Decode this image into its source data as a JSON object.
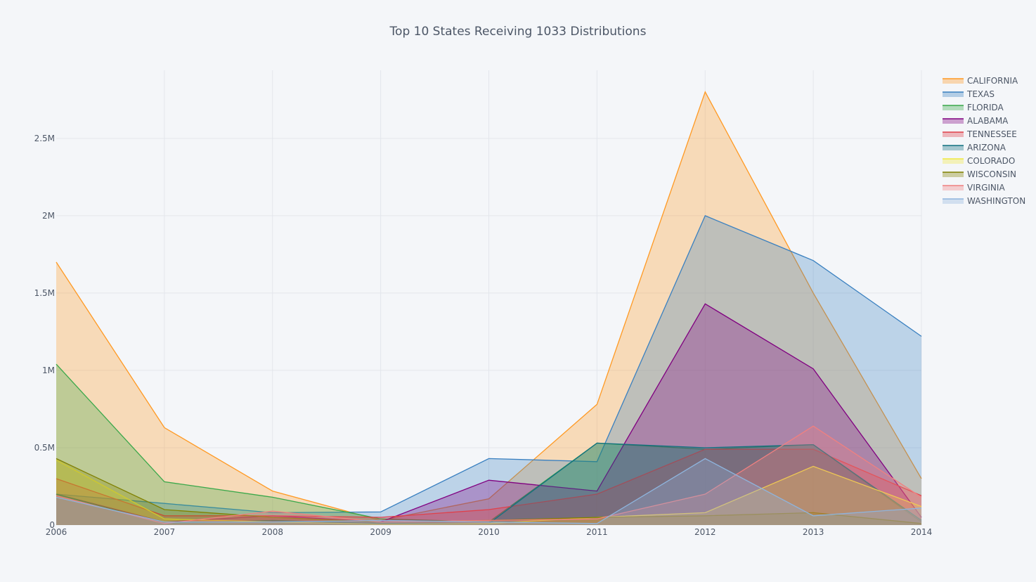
{
  "chart_data": {
    "type": "area",
    "title": "Top 10 States Receiving 1033 Distributions",
    "xlabel": "",
    "ylabel": "",
    "x": [
      2006,
      2007,
      2008,
      2009,
      2010,
      2011,
      2012,
      2013,
      2014
    ],
    "x_tick_labels": [
      "2006",
      "2007",
      "2008",
      "2009",
      "2010",
      "2011",
      "2012",
      "2013",
      "2014"
    ],
    "y_ticks": [
      0,
      500000,
      1000000,
      1500000,
      2000000,
      2500000
    ],
    "y_tick_labels": [
      "0",
      "0.5M",
      "1M",
      "1.5M",
      "2M",
      "2.5M"
    ],
    "ylim": [
      0,
      2940000
    ],
    "xlim": [
      2006,
      2014
    ],
    "grid": true,
    "legend_position": "top-right",
    "series": [
      {
        "name": "CALIFORNIA",
        "color": "#ff9922",
        "values": [
          1700000,
          630000,
          220000,
          30000,
          170000,
          780000,
          2800000,
          1500000,
          300000
        ]
      },
      {
        "name": "TEXAS",
        "color": "#3a80c0",
        "values": [
          200000,
          140000,
          80000,
          85000,
          430000,
          410000,
          2000000,
          1710000,
          1220000
        ]
      },
      {
        "name": "FLORIDA",
        "color": "#3aa84a",
        "values": [
          1040000,
          280000,
          180000,
          40000,
          20000,
          530000,
          490000,
          520000,
          20000
        ]
      },
      {
        "name": "ALABAMA",
        "color": "#800080",
        "values": [
          200000,
          20000,
          60000,
          20000,
          290000,
          220000,
          1430000,
          1010000,
          50000
        ]
      },
      {
        "name": "TENNESSEE",
        "color": "#e0404a",
        "values": [
          300000,
          60000,
          60000,
          50000,
          100000,
          200000,
          490000,
          490000,
          190000
        ]
      },
      {
        "name": "ARIZONA",
        "color": "#107080",
        "values": [
          200000,
          10000,
          30000,
          10000,
          10000,
          530000,
          500000,
          520000,
          30000
        ]
      },
      {
        "name": "COLORADO",
        "color": "#f0e840",
        "values": [
          420000,
          40000,
          20000,
          5000,
          10000,
          50000,
          80000,
          380000,
          120000
        ]
      },
      {
        "name": "WISCONSIN",
        "color": "#808000",
        "values": [
          430000,
          100000,
          50000,
          20000,
          30000,
          50000,
          60000,
          80000,
          10000
        ]
      },
      {
        "name": "VIRGINIA",
        "color": "#f08080",
        "values": [
          190000,
          10000,
          90000,
          20000,
          30000,
          40000,
          200000,
          640000,
          180000
        ]
      },
      {
        "name": "WASHINGTON",
        "color": "#8eb4dd",
        "values": [
          180000,
          20000,
          20000,
          30000,
          20000,
          10000,
          430000,
          60000,
          110000
        ]
      }
    ]
  }
}
